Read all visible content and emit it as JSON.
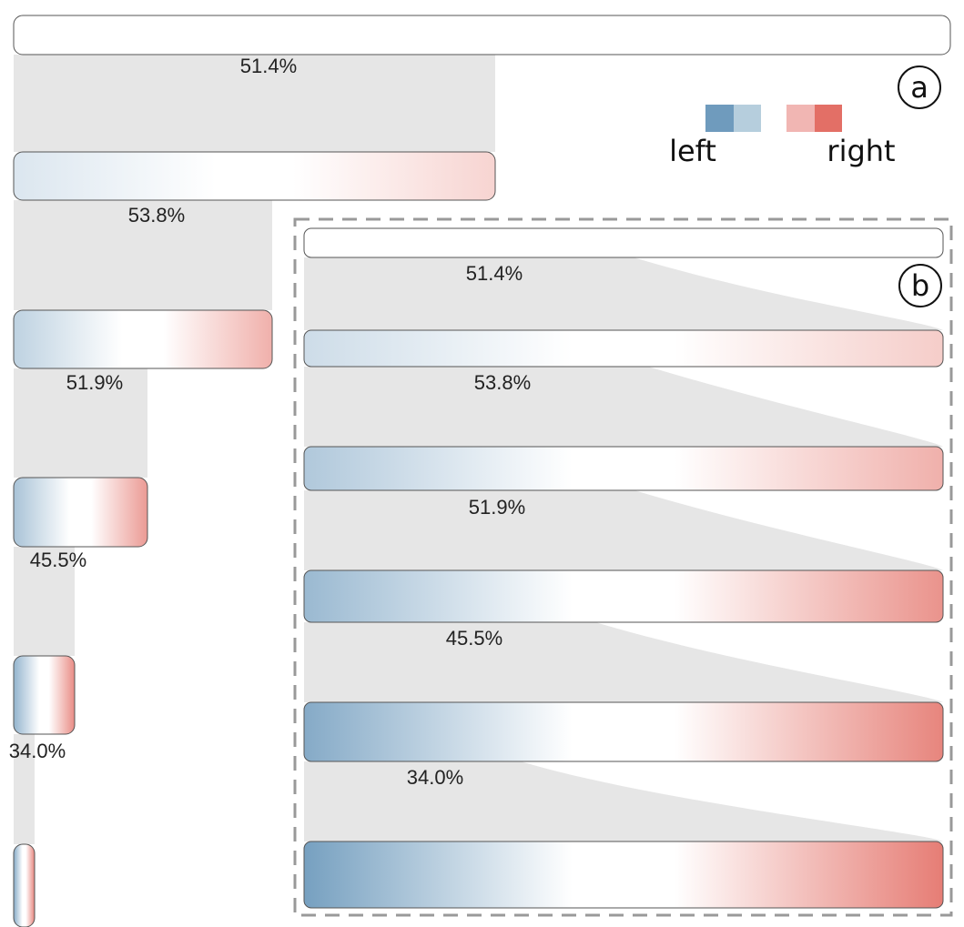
{
  "colors": {
    "left_dark": "#6f9bbd",
    "left_light": "#b6cedd",
    "right_light": "#f1b6b3",
    "right_dark": "#e36f66",
    "flow": "#e6e6e6",
    "frame": "#999999"
  },
  "legend": {
    "left_label": "left",
    "right_label": "right"
  },
  "panel_a": {
    "label": "a",
    "levels": [
      {
        "percent": "51.4%",
        "left_strength": 0.0,
        "right_strength": 0.0
      },
      {
        "percent": "53.8%",
        "left_strength": 0.25,
        "right_strength": 0.3
      },
      {
        "percent": "51.9%",
        "left_strength": 0.45,
        "right_strength": 0.55
      },
      {
        "percent": "45.5%",
        "left_strength": 0.6,
        "right_strength": 0.7
      },
      {
        "percent": "34.0%",
        "left_strength": 0.75,
        "right_strength": 0.8
      },
      {
        "percent": "",
        "left_strength": 0.85,
        "right_strength": 0.85
      }
    ]
  },
  "panel_b": {
    "label": "b",
    "levels": [
      {
        "percent": "51.4%",
        "left_strength": 0.0,
        "right_strength": 0.0
      },
      {
        "percent": "53.8%",
        "left_strength": 0.35,
        "right_strength": 0.35
      },
      {
        "percent": "51.9%",
        "left_strength": 0.55,
        "right_strength": 0.55
      },
      {
        "percent": "45.5%",
        "left_strength": 0.7,
        "right_strength": 0.75
      },
      {
        "percent": "34.0%",
        "left_strength": 0.85,
        "right_strength": 0.85
      },
      {
        "percent": "",
        "left_strength": 0.95,
        "right_strength": 0.9
      }
    ]
  }
}
